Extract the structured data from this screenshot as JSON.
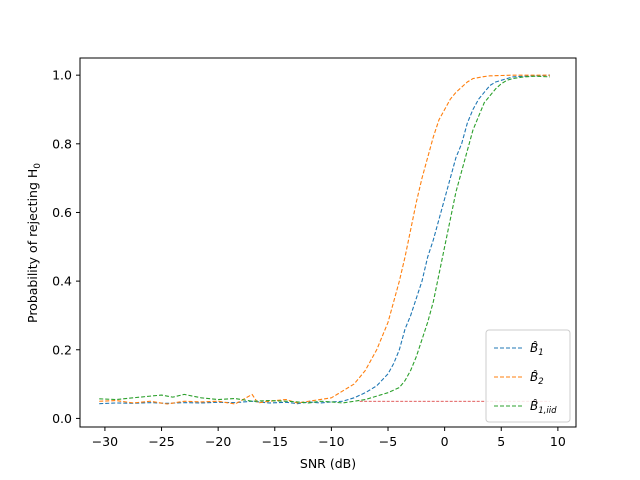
{
  "chart_data": {
    "type": "line",
    "title": "",
    "xlabel": "SNR (dB)",
    "ylabel": "Probability of rejecting H",
    "ylabel_subscript": "0",
    "xlim": [
      -32.2,
      11.6
    ],
    "ylim": [
      -0.025,
      1.05
    ],
    "xticks": [
      -30,
      -25,
      -20,
      -15,
      -10,
      -5,
      0,
      5,
      10
    ],
    "xtick_labels": [
      "−30",
      "−25",
      "−20",
      "−15",
      "−10",
      "−5",
      "0",
      "5",
      "10"
    ],
    "yticks": [
      0.0,
      0.2,
      0.4,
      0.6,
      0.8,
      1.0
    ],
    "ytick_labels": [
      "0.0",
      "0.2",
      "0.4",
      "0.6",
      "0.8",
      "1.0"
    ],
    "legend_position": "lower-right",
    "reference_line": {
      "y": 0.05,
      "x_range": [
        -7.5,
        9.3
      ],
      "color": "#d62728",
      "style": "dashed"
    },
    "series": [
      {
        "name": "B̂1",
        "label_base": "B̂",
        "label_sub": "1",
        "color": "#1f77b4",
        "x": [
          -30.5,
          -29,
          -27.5,
          -26,
          -24.5,
          -23,
          -21.5,
          -20,
          -18.5,
          -17,
          -15.5,
          -14,
          -13,
          -12,
          -11,
          -10,
          -9,
          -8,
          -7,
          -6,
          -5,
          -4.5,
          -4,
          -3.5,
          -3,
          -2.5,
          -2,
          -1.5,
          -1,
          -0.5,
          0,
          0.5,
          1,
          1.5,
          2,
          2.5,
          3,
          3.5,
          4,
          4.5,
          5,
          5.5,
          6,
          7,
          8,
          9.3
        ],
        "y": [
          0.043,
          0.045,
          0.044,
          0.046,
          0.044,
          0.046,
          0.045,
          0.047,
          0.046,
          0.05,
          0.045,
          0.047,
          0.043,
          0.048,
          0.045,
          0.048,
          0.05,
          0.06,
          0.075,
          0.095,
          0.13,
          0.16,
          0.2,
          0.26,
          0.3,
          0.35,
          0.4,
          0.47,
          0.52,
          0.58,
          0.64,
          0.7,
          0.76,
          0.8,
          0.86,
          0.9,
          0.93,
          0.95,
          0.97,
          0.98,
          0.985,
          0.99,
          0.995,
          0.997,
          0.998,
          1.0
        ]
      },
      {
        "name": "B̂2",
        "label_base": "B̂",
        "label_sub": "2",
        "color": "#ff7f0e",
        "x": [
          -30.5,
          -29,
          -27.5,
          -26,
          -24.5,
          -23,
          -21.5,
          -20,
          -18.5,
          -17,
          -16.5,
          -15.5,
          -14,
          -13,
          -12,
          -11,
          -10,
          -9.5,
          -9,
          -8.5,
          -8,
          -7.5,
          -7,
          -6.5,
          -6,
          -5.5,
          -5,
          -4.5,
          -4,
          -3.5,
          -3,
          -2.5,
          -2,
          -1.5,
          -1,
          -0.5,
          0,
          0.5,
          1,
          1.5,
          2,
          2.5,
          3,
          3.5,
          4,
          5,
          6,
          7,
          8,
          9.3
        ],
        "y": [
          0.05,
          0.052,
          0.045,
          0.05,
          0.042,
          0.05,
          0.048,
          0.05,
          0.042,
          0.07,
          0.045,
          0.05,
          0.055,
          0.045,
          0.05,
          0.055,
          0.06,
          0.07,
          0.08,
          0.09,
          0.1,
          0.12,
          0.14,
          0.17,
          0.2,
          0.24,
          0.28,
          0.34,
          0.4,
          0.47,
          0.55,
          0.63,
          0.7,
          0.76,
          0.82,
          0.87,
          0.9,
          0.93,
          0.95,
          0.965,
          0.98,
          0.99,
          0.993,
          0.996,
          0.998,
          0.999,
          1.0,
          1.0,
          1.0,
          1.0
        ]
      },
      {
        "name": "B̂1,iid",
        "label_base": "B̂",
        "label_sub": "1,iid",
        "color": "#2ca02c",
        "x": [
          -30.5,
          -29,
          -27.5,
          -26,
          -25,
          -24,
          -23,
          -21.5,
          -20,
          -18.5,
          -17,
          -15.5,
          -14,
          -13,
          -12,
          -11,
          -10,
          -9,
          -8,
          -7,
          -6,
          -5,
          -4,
          -3.5,
          -3,
          -2.5,
          -2,
          -1.5,
          -1,
          -0.5,
          0,
          0.5,
          1,
          1.5,
          2,
          2.5,
          3,
          3.5,
          4,
          4.5,
          5,
          5.5,
          6,
          7,
          8,
          9.3
        ],
        "y": [
          0.057,
          0.055,
          0.06,
          0.065,
          0.068,
          0.062,
          0.07,
          0.06,
          0.055,
          0.058,
          0.05,
          0.052,
          0.05,
          0.048,
          0.045,
          0.05,
          0.048,
          0.045,
          0.05,
          0.055,
          0.065,
          0.075,
          0.09,
          0.11,
          0.14,
          0.18,
          0.23,
          0.28,
          0.34,
          0.42,
          0.5,
          0.58,
          0.66,
          0.72,
          0.78,
          0.84,
          0.88,
          0.92,
          0.94,
          0.96,
          0.975,
          0.985,
          0.99,
          0.995,
          0.997,
          0.995
        ]
      }
    ]
  }
}
